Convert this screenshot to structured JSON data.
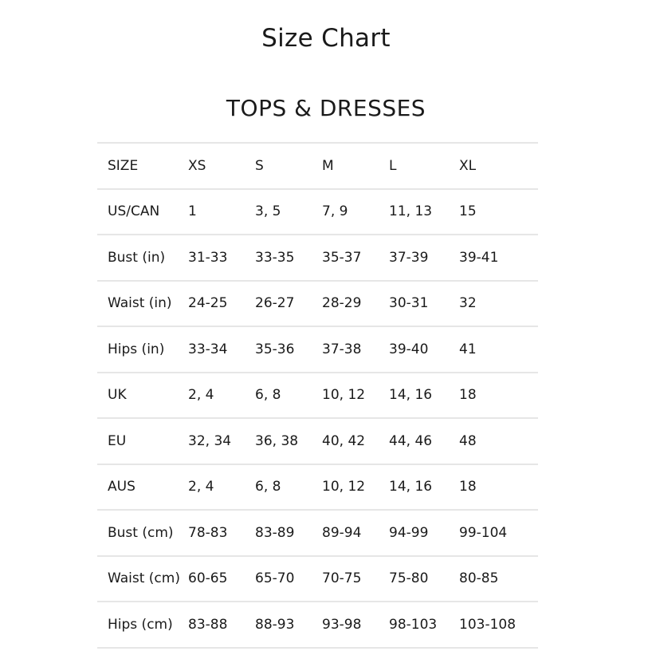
{
  "title": "Size Chart",
  "section_title": "TOPS & DRESSES",
  "table": {
    "rows": [
      [
        "SIZE",
        "XS",
        "S",
        "M",
        "L",
        "XL"
      ],
      [
        "US/CAN",
        "1",
        "3, 5",
        "7, 9",
        "11, 13",
        "15"
      ],
      [
        "Bust (in)",
        "31-33",
        "33-35",
        "35-37",
        "37-39",
        "39-41"
      ],
      [
        "Waist (in)",
        "24-25",
        "26-27",
        "28-29",
        "30-31",
        "32"
      ],
      [
        "Hips (in)",
        "33-34",
        "35-36",
        "37-38",
        "39-40",
        "41"
      ],
      [
        "UK",
        "2, 4",
        "6, 8",
        "10, 12",
        "14, 16",
        "18"
      ],
      [
        "EU",
        "32, 34",
        "36, 38",
        "40, 42",
        "44, 46",
        "48"
      ],
      [
        "AUS",
        "2, 4",
        "6, 8",
        "10, 12",
        "14, 16",
        "18"
      ],
      [
        "Bust (cm)",
        "78-83",
        "83-89",
        "89-94",
        "94-99",
        "99-104"
      ],
      [
        "Waist (cm)",
        "60-65",
        "65-70",
        "70-75",
        "75-80",
        "80-85"
      ],
      [
        "Hips (cm)",
        "83-88",
        "88-93",
        "93-98",
        "98-103",
        "103-108"
      ]
    ]
  }
}
